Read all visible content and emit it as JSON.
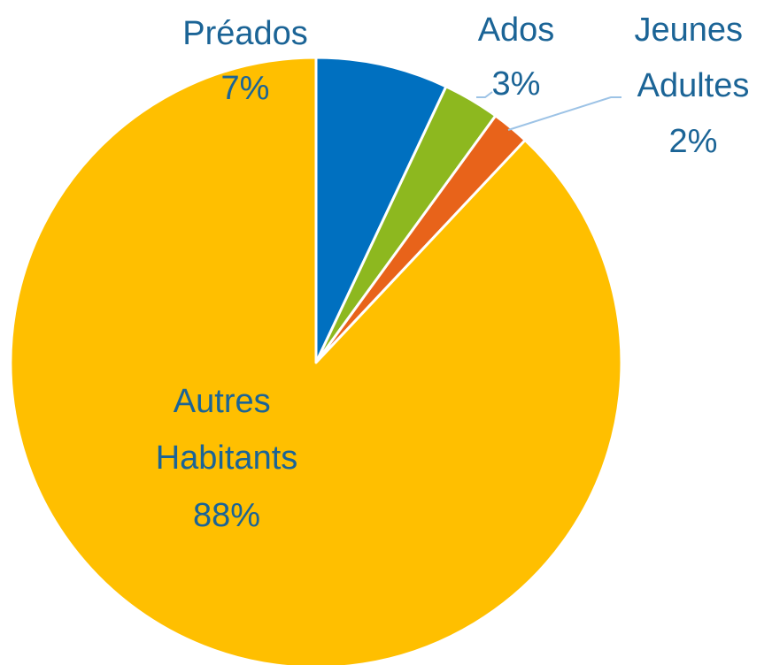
{
  "chart_data": {
    "type": "pie",
    "categories": [
      "Préados",
      "Ados",
      "Jeunes Adultes",
      "Autres Habitants"
    ],
    "values": [
      7,
      3,
      2,
      88
    ],
    "value_labels": [
      "7%",
      "3%",
      "2%",
      "88%"
    ],
    "colors": [
      "#0070c0",
      "#8db81f",
      "#e8631a",
      "#ffbf00"
    ]
  }
}
